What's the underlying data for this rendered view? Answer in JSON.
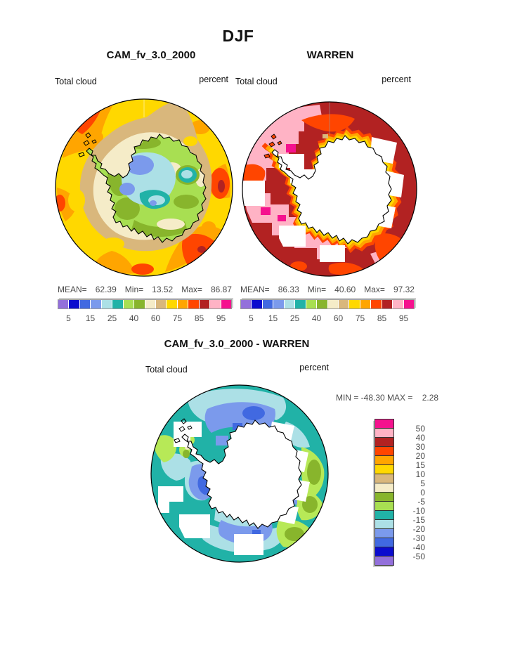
{
  "figure": {
    "season_title": "DJF"
  },
  "top_left_panel": {
    "title": "CAM_fv_3.0_2000",
    "field_label": "Total cloud",
    "units_label": "percent",
    "stats": {
      "mean_label": "MEAN=",
      "mean_value": "62.39",
      "min_label": "Min=",
      "min_value": "13.52",
      "max_label": "Max=",
      "max_value": "86.87"
    }
  },
  "top_right_panel": {
    "title": "WARREN",
    "field_label": "Total cloud",
    "units_label": "percent",
    "stats": {
      "mean_label": "MEAN=",
      "mean_value": "86.33",
      "min_label": "Min=",
      "min_value": "40.60",
      "max_label": "Max=",
      "max_value": "97.32"
    }
  },
  "bottom_panel": {
    "title": "CAM_fv_3.0_2000 - WARREN",
    "field_label": "Total cloud",
    "units_label": "percent",
    "minmax_line": "MIN = -48.30 MAX =    2.28"
  },
  "shared_colorbar": {
    "tick_labels": [
      "5",
      "15",
      "25",
      "40",
      "60",
      "75",
      "85",
      "95"
    ],
    "colors": [
      "#9370DB",
      "#0B0BCE",
      "#4169E1",
      "#7B9AEC",
      "#ACE0E6",
      "#21B2A7",
      "#A8DF52",
      "#88B52C",
      "#F5ECC8",
      "#D9B77C",
      "#FFD800",
      "#FFA500",
      "#FF4500",
      "#B22222",
      "#FFB3C5",
      "#F5128E"
    ]
  },
  "diff_colorbar": {
    "labels": [
      "50",
      "40",
      "30",
      "20",
      "15",
      "10",
      "5",
      "0",
      "-5",
      "-10",
      "-15",
      "-20",
      "-30",
      "-40",
      "-50"
    ],
    "colors": [
      "#F5128E",
      "#FFB3C5",
      "#B22222",
      "#FF4500",
      "#FFA500",
      "#FFD800",
      "#D9B77C",
      "#F5ECC8",
      "#88B52C",
      "#A8DF52",
      "#21B2A7",
      "#ACE0E6",
      "#7B9AEC",
      "#4169E1",
      "#0B0BCE",
      "#9370DB"
    ]
  },
  "chart_data": [
    {
      "type": "heatmap",
      "subtype": "south-polar filled contour map",
      "title": "CAM_fv_3.0_2000",
      "variable": "Total cloud",
      "units": "percent",
      "season": "DJF",
      "stats": {
        "mean": 62.39,
        "min": 13.52,
        "max": 86.87
      },
      "contour_levels": [
        5,
        10,
        15,
        20,
        25,
        30,
        40,
        50,
        60,
        70,
        75,
        80,
        85,
        90,
        95
      ],
      "labeled_ticks": [
        5,
        15,
        25,
        40,
        60,
        75,
        85,
        95
      ],
      "legend_position": "below"
    },
    {
      "type": "heatmap",
      "subtype": "south-polar filled contour map (with missing-data blocks)",
      "title": "WARREN",
      "variable": "Total cloud",
      "units": "percent",
      "season": "DJF",
      "stats": {
        "mean": 86.33,
        "min": 40.6,
        "max": 97.32
      },
      "contour_levels": [
        5,
        10,
        15,
        20,
        25,
        30,
        40,
        50,
        60,
        70,
        75,
        80,
        85,
        90,
        95
      ],
      "labeled_ticks": [
        5,
        15,
        25,
        40,
        60,
        75,
        85,
        95
      ],
      "legend_position": "below"
    },
    {
      "type": "heatmap",
      "subtype": "south-polar difference map",
      "title": "CAM_fv_3.0_2000 - WARREN",
      "variable": "Total cloud",
      "units": "percent",
      "season": "DJF",
      "stats": {
        "min": -48.3,
        "max": 2.28
      },
      "contour_levels": [
        -50,
        -40,
        -30,
        -20,
        -15,
        -10,
        -5,
        0,
        5,
        10,
        15,
        20,
        30,
        40,
        50
      ],
      "legend_position": "right-vertical"
    }
  ]
}
